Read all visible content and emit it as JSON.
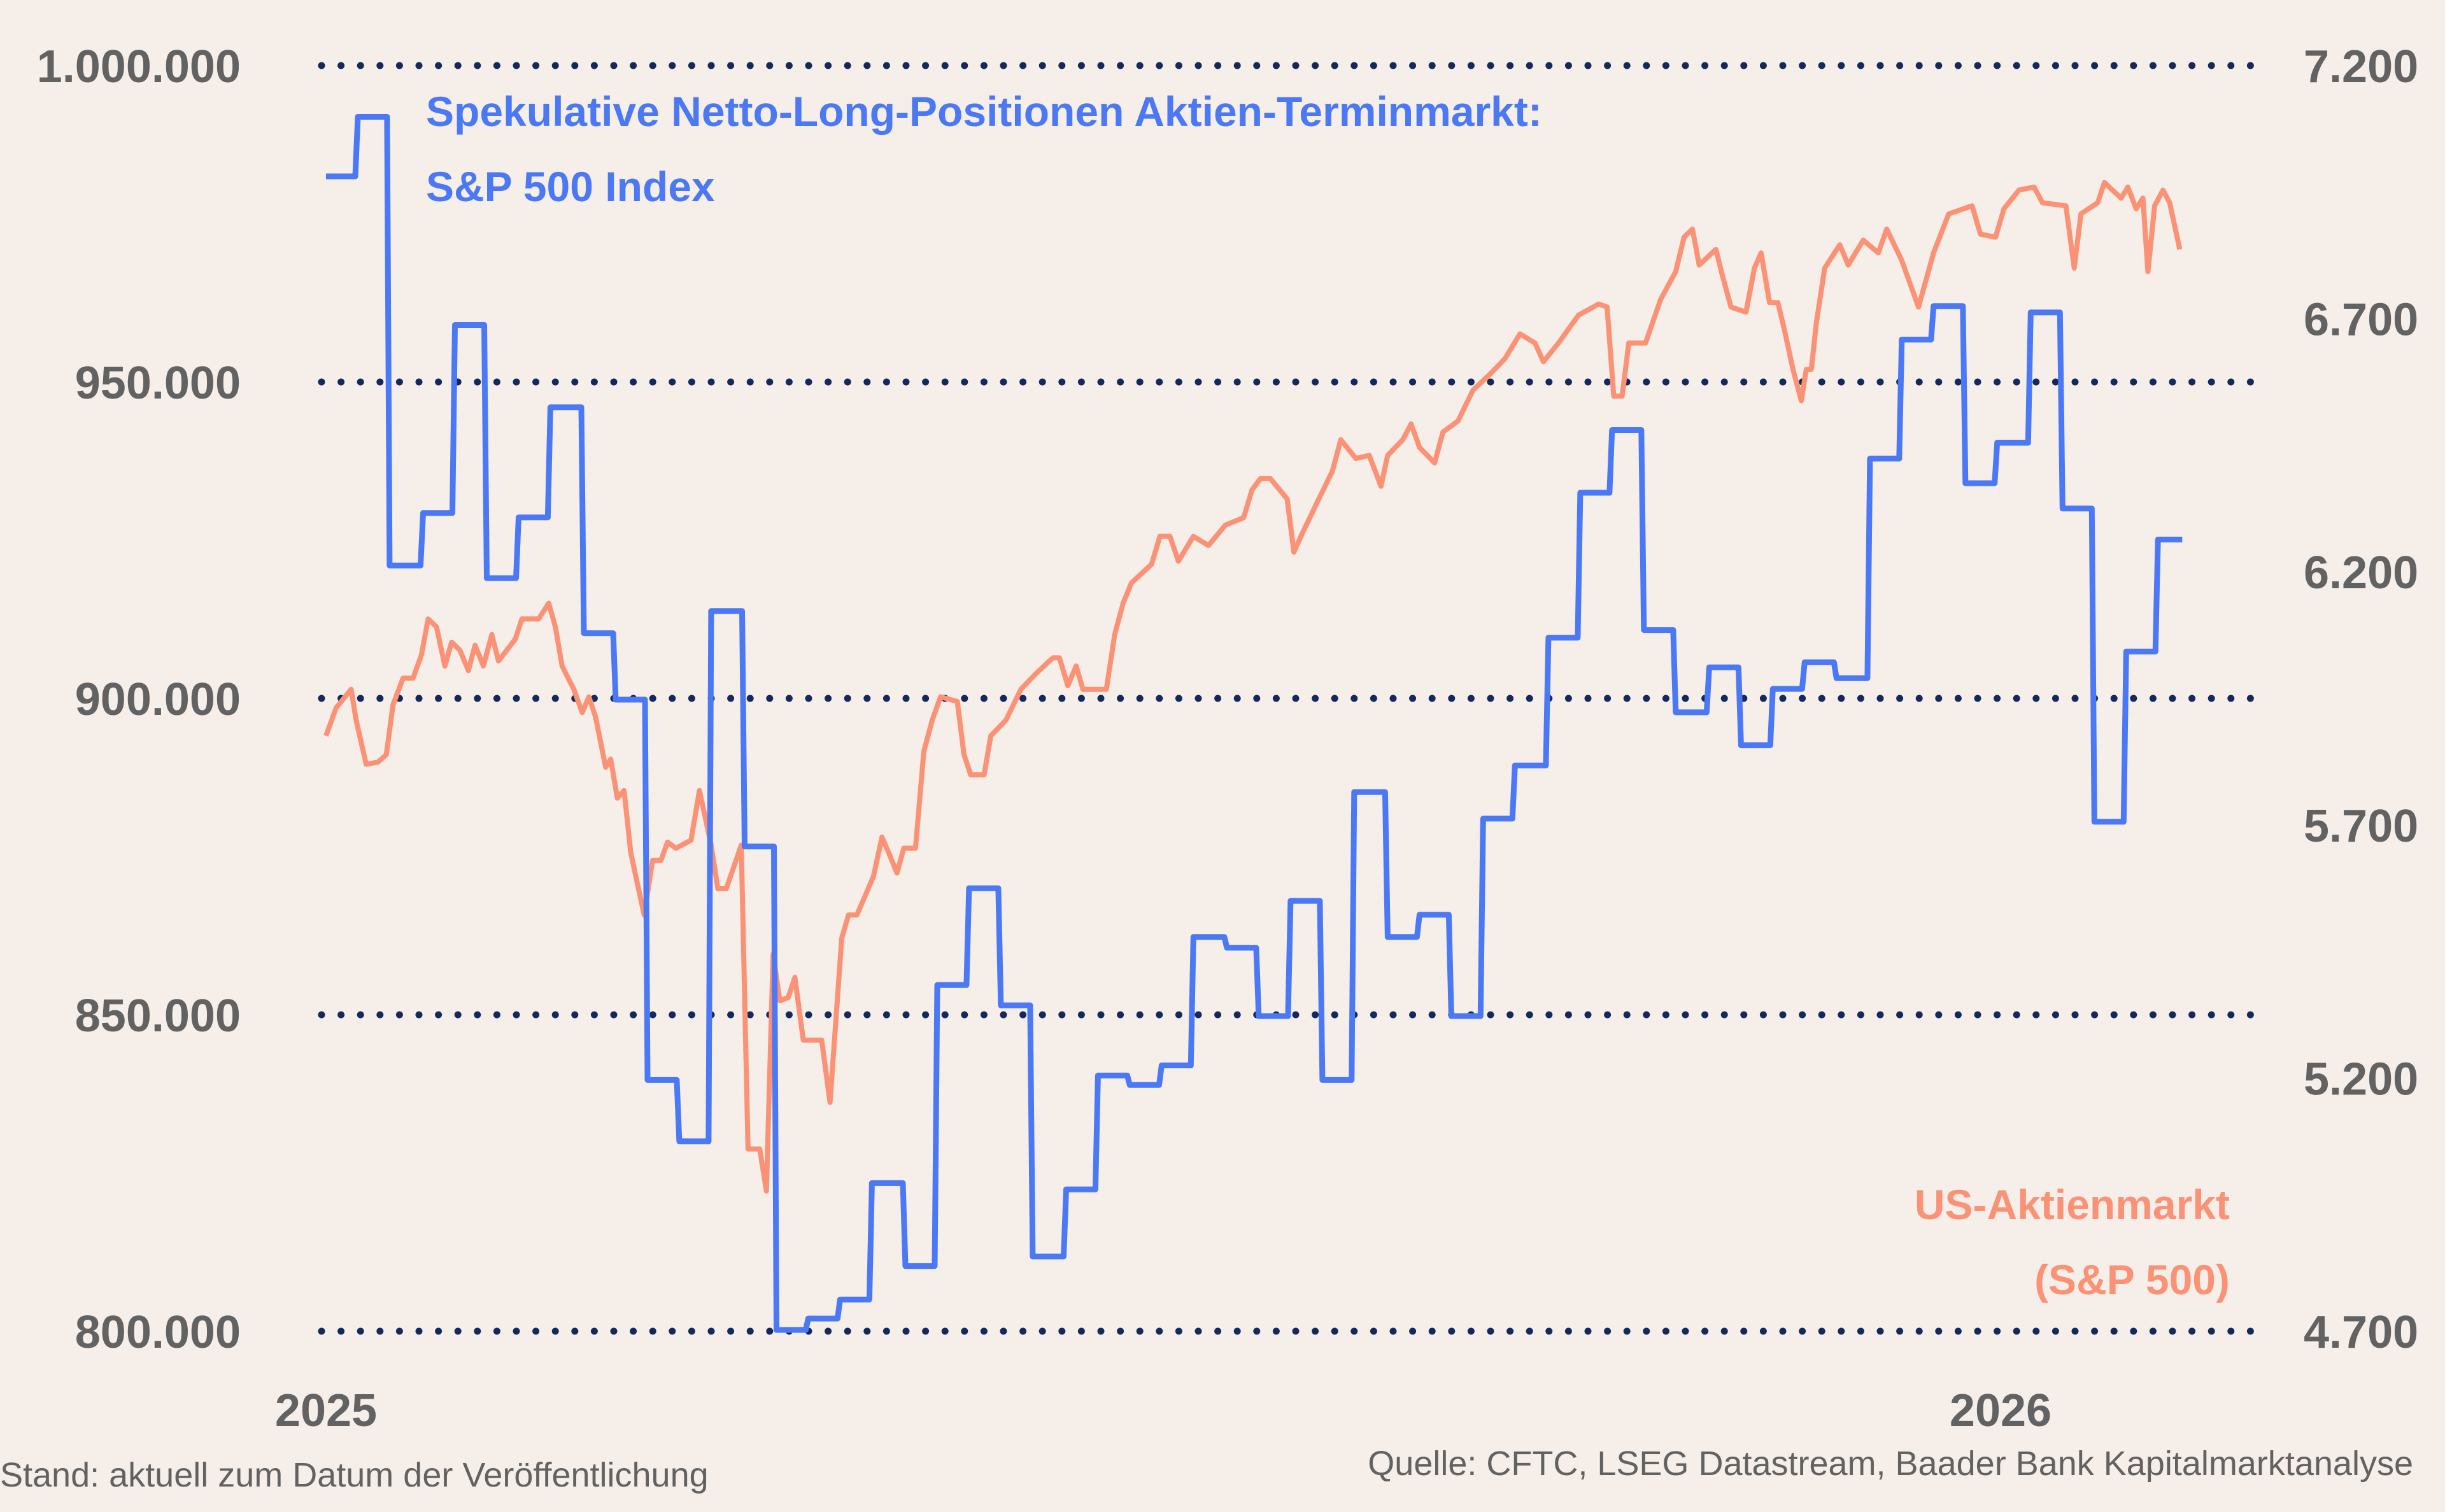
{
  "chart_data": {
    "type": "line",
    "title_lines": [
      "Spekulative Netto-Long-Positionen Aktien-Terminmarkt:",
      "S&P 500 Index"
    ],
    "right_label_lines": [
      "US-Aktienmarkt",
      "(S&P 500)"
    ],
    "footer_left": "Stand: aktuell zum Datum der Veröffentlichung",
    "footer_right": "Quelle: CFTC, LSEG Datastream, Baader Bank Kapitalmarktanalyse",
    "grid": "horizontal dotted",
    "colors": {
      "positions": "#4b78f5",
      "sp500": "#fb9276",
      "grid": "#13285c",
      "text": "#626262",
      "background": "#f5eee9"
    },
    "x_axis": {
      "unit": "year",
      "range": [
        2025,
        2026.11
      ],
      "ticks": [
        2025,
        2026
      ],
      "tick_labels": [
        "2025",
        "2026"
      ]
    },
    "left_axis": {
      "range": [
        800000,
        1000000
      ],
      "ticks": [
        800000,
        850000,
        900000,
        950000,
        1000000
      ],
      "tick_labels": [
        "800.000",
        "850.000",
        "900.000",
        "950.000",
        "1.000.000"
      ]
    },
    "right_axis": {
      "range": [
        4700,
        7200
      ],
      "ticks": [
        4700,
        5200,
        5700,
        6200,
        6700,
        7200
      ],
      "tick_labels": [
        "4.700",
        "5.200",
        "5.700",
        "6.200",
        "6.700",
        "7.200"
      ]
    },
    "series": [
      {
        "name": "Spekulative Netto-Long-Positionen Aktien-Terminmarkt: S&P 500 Index",
        "axis": "left",
        "style": "step",
        "end_x": 2026.11,
        "x": [
          2025.0,
          2025.019,
          2025.038,
          2025.058,
          2025.077,
          2025.096,
          2025.115,
          2025.134,
          2025.154,
          2025.173,
          2025.192,
          2025.211,
          2025.23,
          2025.25,
          2025.269,
          2025.288,
          2025.307,
          2025.326,
          2025.346,
          2025.365,
          2025.384,
          2025.403,
          2025.422,
          2025.442,
          2025.461,
          2025.48,
          2025.499,
          2025.518,
          2025.538,
          2025.557,
          2025.576,
          2025.595,
          2025.614,
          2025.634,
          2025.653,
          2025.672,
          2025.691,
          2025.71,
          2025.73,
          2025.749,
          2025.768,
          2025.787,
          2025.806,
          2025.826,
          2025.845,
          2025.864,
          2025.883,
          2025.902,
          2025.922,
          2025.941,
          2025.96,
          2025.979,
          2025.998,
          2026.018,
          2026.037,
          2026.056,
          2026.075,
          2026.094
        ],
        "y": [
          982500,
          991900,
          921000,
          929300,
          959000,
          919000,
          928600,
          946000,
          910300,
          899800,
          839700,
          830000,
          913800,
          876600,
          800200,
          802000,
          805000,
          823400,
          810300,
          854700,
          870000,
          851500,
          811800,
          822400,
          840400,
          838900,
          842000,
          862300,
          860600,
          849800,
          868000,
          839700,
          885200,
          862300,
          865800,
          849800,
          881000,
          889400,
          909600,
          932500,
          942400,
          910800,
          897800,
          904900,
          892600,
          901500,
          905700,
          903200,
          937900,
          956700,
          962000,
          934000,
          940400,
          961000,
          930000,
          880500,
          907400,
          925100
        ]
      },
      {
        "name": "US-Aktienmarkt (S&P 500)",
        "axis": "right",
        "style": "line",
        "x": [
          2025.0,
          2025.006,
          2025.015,
          2025.018,
          2025.024,
          2025.031,
          2025.036,
          2025.04,
          2025.046,
          2025.052,
          2025.057,
          2025.061,
          2025.066,
          2025.071,
          2025.075,
          2025.08,
          2025.085,
          2025.089,
          2025.094,
          2025.099,
          2025.103,
          2025.113,
          2025.117,
          2025.127,
          2025.133,
          2025.137,
          2025.141,
          2025.148,
          2025.153,
          2025.157,
          2025.161,
          2025.167,
          2025.17,
          2025.174,
          2025.178,
          2025.182,
          2025.185,
          2025.19,
          2025.195,
          2025.2,
          2025.204,
          2025.209,
          2025.218,
          2025.223,
          2025.226,
          2025.23,
          2025.234,
          2025.239,
          2025.248,
          2025.252,
          2025.259,
          2025.263,
          2025.267,
          2025.271,
          2025.276,
          2025.28,
          2025.285,
          2025.296,
          2025.301,
          2025.304,
          2025.308,
          2025.312,
          2025.317,
          2025.323,
          2025.327,
          2025.332,
          2025.336,
          2025.341,
          2025.345,
          2025.352,
          2025.357,
          2025.362,
          2025.367,
          2025.377,
          2025.381,
          2025.385,
          2025.393,
          2025.397,
          2025.406,
          2025.415,
          2025.424,
          2025.434,
          2025.438,
          2025.443,
          2025.448,
          2025.452,
          2025.466,
          2025.471,
          2025.476,
          2025.481,
          2025.493,
          2025.498,
          2025.504,
          2025.509,
          2025.518,
          2025.527,
          2025.537,
          2025.548,
          2025.553,
          2025.558,
          2025.564,
          2025.574,
          2025.578,
          2025.583,
          2025.592,
          2025.601,
          2025.606,
          2025.615,
          2025.623,
          2025.63,
          2025.634,
          2025.643,
          2025.648,
          2025.653,
          2025.662,
          2025.667,
          2025.676,
          2025.685,
          2025.695,
          2025.704,
          2025.713,
          2025.722,
          2025.727,
          2025.736,
          2025.748,
          2025.76,
          2025.765,
          2025.769,
          2025.774,
          2025.778,
          2025.788,
          2025.797,
          2025.806,
          2025.811,
          2025.816,
          2025.82,
          2025.83,
          2025.834,
          2025.839,
          2025.848,
          2025.853,
          2025.857,
          2025.862,
          2025.867,
          2025.871,
          2025.876,
          2025.881,
          2025.884,
          2025.887,
          2025.89,
          2025.895,
          2025.904,
          2025.909,
          2025.918,
          2025.927,
          2025.932,
          2025.941,
          2025.951,
          2025.96,
          2025.969,
          2025.983,
          2025.988,
          2025.997,
          2026.002,
          2026.011,
          2026.02,
          2026.025,
          2026.039,
          2026.044,
          2026.048,
          2026.058,
          2026.062,
          2026.072,
          2026.076,
          2026.081,
          2026.085,
          2026.088,
          2026.092,
          2026.097,
          2026.101,
          2026.107
        ],
        "y": [
          5876,
          5931,
          5968,
          5907,
          5820,
          5824,
          5839,
          5937,
          5990,
          5990,
          6036,
          6107,
          6091,
          6014,
          6061,
          6045,
          6005,
          6055,
          6014,
          6076,
          6024,
          6067,
          6107,
          6107,
          6138,
          6091,
          6014,
          5968,
          5922,
          5953,
          5913,
          5814,
          5830,
          5753,
          5768,
          5645,
          5599,
          5522,
          5630,
          5630,
          5666,
          5654,
          5670,
          5768,
          5722,
          5660,
          5574,
          5574,
          5660,
          5060,
          5060,
          4977,
          5445,
          5353,
          5359,
          5399,
          5275,
          5275,
          5152,
          5291,
          5476,
          5522,
          5522,
          5568,
          5599,
          5676,
          5645,
          5605,
          5654,
          5654,
          5845,
          5907,
          5953,
          5944,
          5839,
          5799,
          5799,
          5876,
          5907,
          5968,
          5999,
          6030,
          6030,
          5975,
          6014,
          5968,
          5968,
          6076,
          6138,
          6178,
          6215,
          6270,
          6270,
          6221,
          6270,
          6252,
          6292,
          6307,
          6362,
          6384,
          6384,
          6344,
          6239,
          6276,
          6338,
          6399,
          6461,
          6424,
          6430,
          6369,
          6430,
          6461,
          6492,
          6446,
          6415,
          6476,
          6498,
          6559,
          6590,
          6621,
          6670,
          6652,
          6615,
          6652,
          6707,
          6729,
          6723,
          6547,
          6547,
          6652,
          6652,
          6738,
          6793,
          6861,
          6877,
          6806,
          6837,
          6784,
          6723,
          6713,
          6800,
          6830,
          6732,
          6732,
          6677,
          6600,
          6538,
          6600,
          6600,
          6692,
          6800,
          6846,
          6806,
          6855,
          6830,
          6877,
          6815,
          6723,
          6830,
          6907,
          6923,
          6867,
          6861,
          6917,
          6954,
          6960,
          6929,
          6923,
          6800,
          6907,
          6929,
          6969,
          6938,
          6960,
          6917,
          6938,
          6793,
          6923,
          6954,
          6929,
          6837
        ]
      }
    ]
  }
}
